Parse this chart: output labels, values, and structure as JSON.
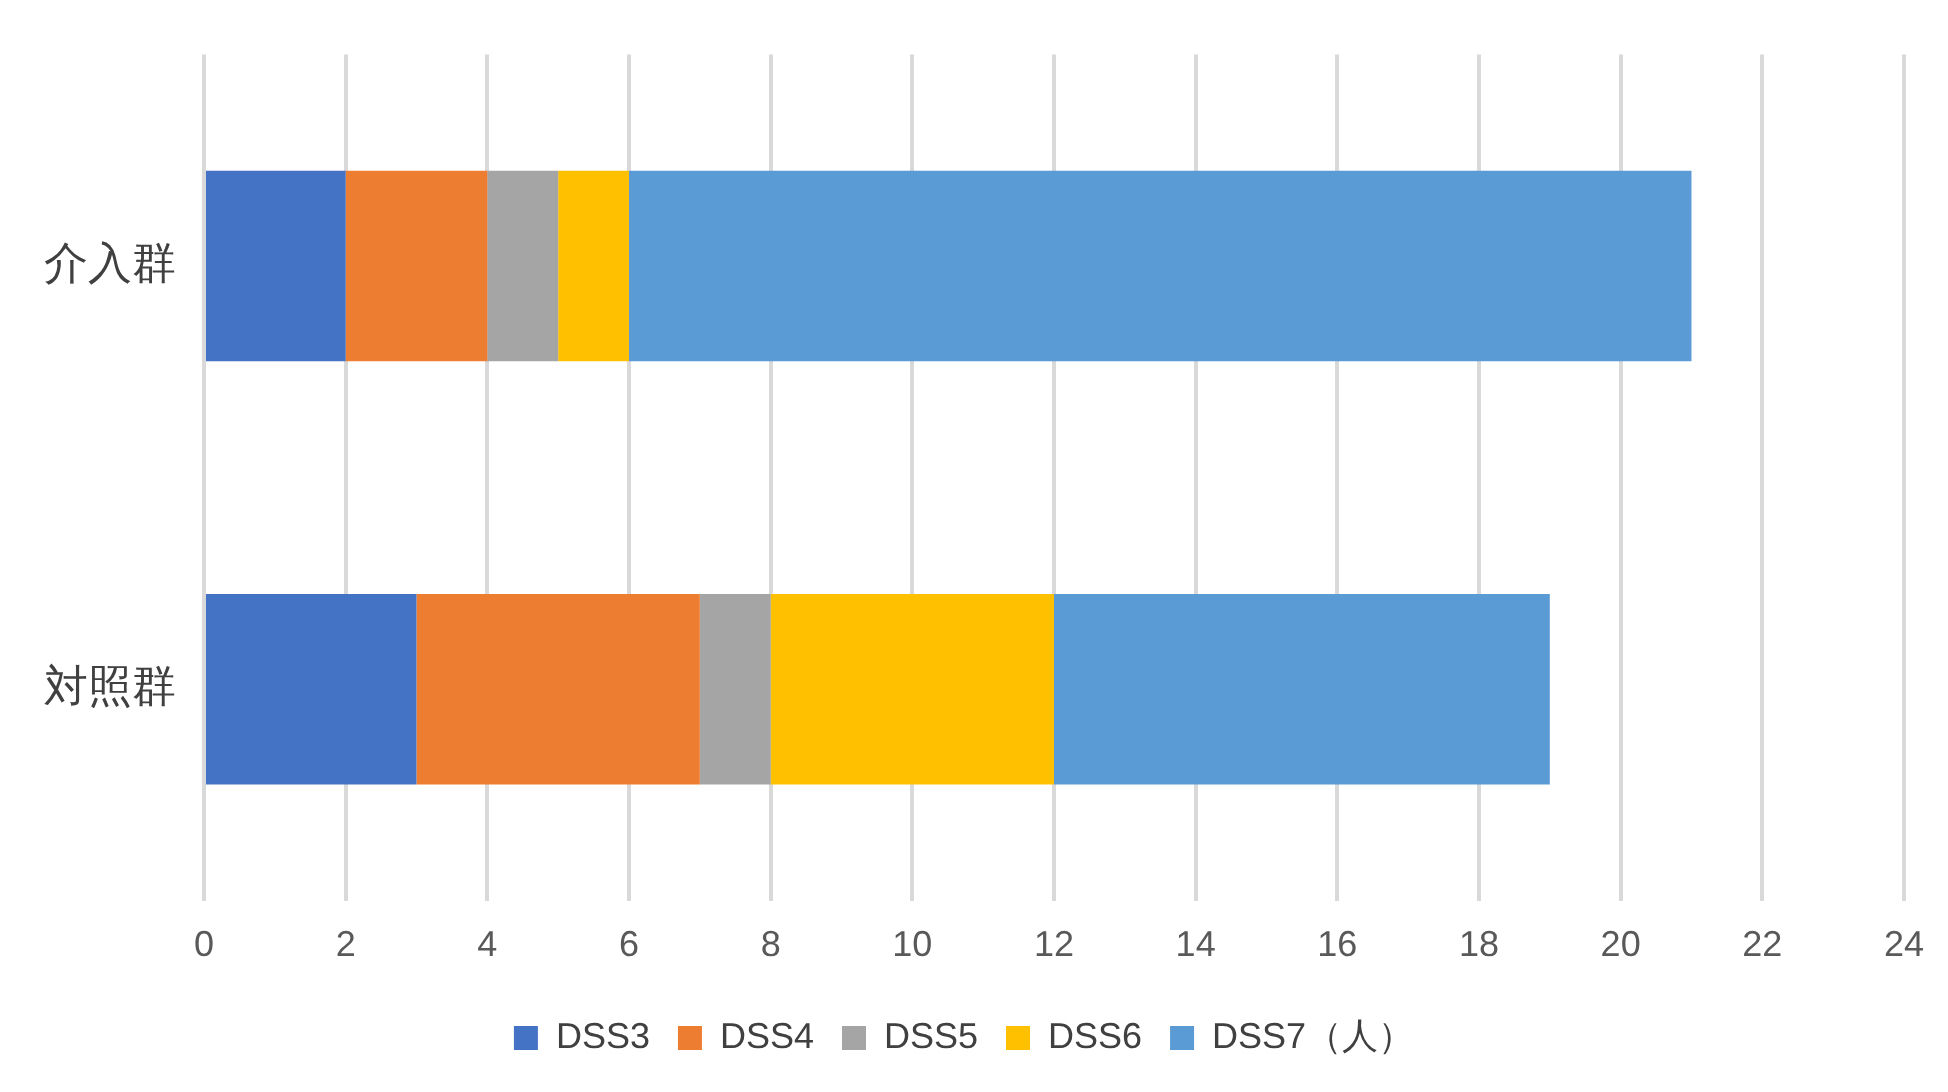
{
  "chart_data": {
    "type": "bar",
    "orientation": "horizontal",
    "stacked": true,
    "categories": [
      "介入群",
      "対照群"
    ],
    "series": [
      {
        "name": "DSS3",
        "color": "#4472c4",
        "values": [
          2,
          3
        ]
      },
      {
        "name": "DSS4",
        "color": "#ed7d31",
        "values": [
          2,
          4
        ]
      },
      {
        "name": "DSS5",
        "color": "#a5a5a5",
        "values": [
          1,
          1
        ]
      },
      {
        "name": "DSS6",
        "color": "#ffc000",
        "values": [
          1,
          4
        ]
      },
      {
        "name": "DSS7（人）",
        "color": "#5b9bd5",
        "values": [
          15,
          7
        ]
      }
    ],
    "xlim": [
      0,
      24
    ],
    "xticks": [
      0,
      2,
      4,
      6,
      8,
      10,
      12,
      14,
      16,
      18,
      20,
      22,
      24
    ],
    "grid": "x",
    "legend": "bottom"
  }
}
